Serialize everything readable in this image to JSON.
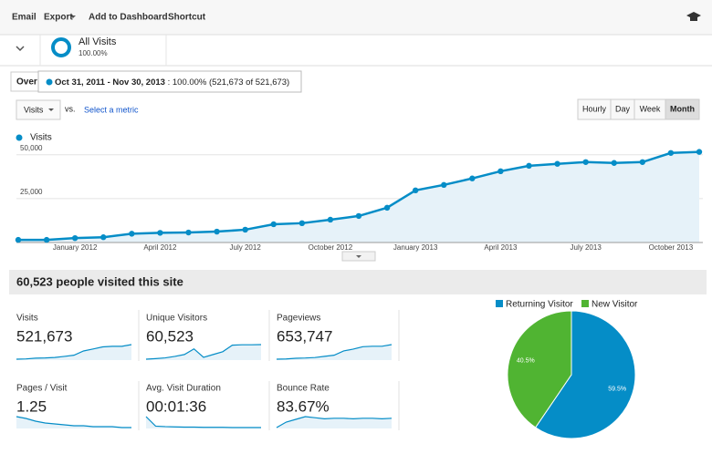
{
  "toolbar": {
    "items": [
      "Email",
      "Export",
      "Add to Dashboard",
      "Shortcut"
    ]
  },
  "segment": {
    "name": "All Visits",
    "percent": "100.00%"
  },
  "tab": "Over",
  "tooltip": {
    "dates": "Oct 31, 2011 - Nov 30, 2013",
    "text": ": 100.00% (521,673 of 521,673)"
  },
  "controls": {
    "metric": "Visits",
    "vs": "vs.",
    "select": "Select a metric",
    "granularity": [
      "Hourly",
      "Day",
      "Week",
      "Month"
    ],
    "active": "Month"
  },
  "chart_data": [
    {
      "type": "line",
      "categories": [
        null,
        null,
        "January 2012",
        null,
        null,
        "April 2012",
        null,
        null,
        "July 2012",
        null,
        null,
        "October 2012",
        null,
        null,
        "January 2013",
        null,
        null,
        "April 2013",
        null,
        null,
        "July 2013",
        null,
        null,
        "October 2013",
        null
      ],
      "series": [
        {
          "name": "Visits",
          "color": "#058dc7",
          "values": [
            1500,
            1500,
            2500,
            3000,
            5000,
            5500,
            5700,
            6200,
            7300,
            10400,
            11000,
            13000,
            15100,
            19800,
            29700,
            32800,
            36500,
            40600,
            43700,
            44800,
            45800,
            45300,
            45800,
            51000,
            51600
          ]
        }
      ],
      "ylim": [
        0,
        54000
      ],
      "yticks": [
        {
          "value": 25000,
          "label": "25,000"
        },
        {
          "value": 50000,
          "label": "50,000"
        }
      ],
      "grid": true,
      "area": true
    },
    {
      "type": "pie",
      "categories": [
        "Returning Visitor",
        "New Visitor"
      ],
      "values": [
        59.5,
        40.5
      ],
      "value_labels": [
        "59.5%",
        "40.5%"
      ],
      "colors": [
        "#058dc7",
        "#50b432"
      ]
    }
  ],
  "summary": {
    "title": "60,523 people visited this site",
    "metrics": [
      {
        "name": "Visits",
        "value": "521,673",
        "sparkline": [
          1500,
          2500,
          5000,
          5700,
          7300,
          11000,
          15100,
          29700,
          36500,
          43700,
          45800,
          45800,
          51600
        ]
      },
      {
        "name": "Unique Visitors",
        "value": "60,523",
        "sparkline": [
          500,
          800,
          1200,
          2000,
          3000,
          6000,
          1500,
          3000,
          4500,
          8000,
          8200,
          8200,
          8300
        ]
      },
      {
        "name": "Pageviews",
        "value": "653,747",
        "sparkline": [
          2000,
          3000,
          6000,
          7000,
          9000,
          14000,
          19000,
          37000,
          45000,
          55000,
          57000,
          57000,
          64000
        ]
      },
      {
        "name": "Pages / Visit",
        "value": "1.25",
        "sparkline": [
          1.35,
          1.33,
          1.3,
          1.28,
          1.27,
          1.26,
          1.25,
          1.25,
          1.24,
          1.24,
          1.24,
          1.23,
          1.23
        ]
      },
      {
        "name": "Avg. Visit Duration",
        "value": "00:01:36",
        "sparkline": [
          140,
          100,
          98,
          97,
          96,
          96,
          95,
          95,
          95,
          94,
          94,
          94,
          94
        ]
      },
      {
        "name": "Bounce Rate",
        "value": "83.67%",
        "sparkline": [
          82,
          83,
          83.5,
          84,
          83.8,
          83.6,
          83.7,
          83.7,
          83.6,
          83.7,
          83.7,
          83.6,
          83.7
        ]
      }
    ]
  }
}
